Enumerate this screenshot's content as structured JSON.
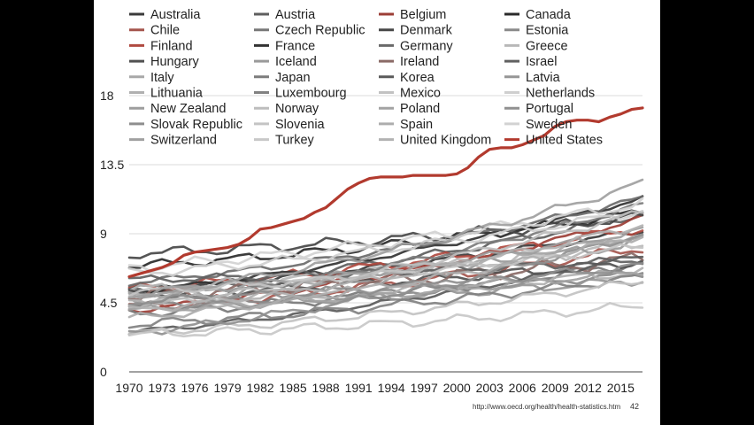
{
  "slide": {
    "source_text": "http://www.oecd.org/health/health-statistics.htm",
    "page_number": "42"
  },
  "chart_data": {
    "type": "line",
    "title": "",
    "xlabel": "",
    "ylabel": "",
    "x": [
      1970,
      1971,
      1972,
      1973,
      1974,
      1975,
      1976,
      1977,
      1978,
      1979,
      1980,
      1981,
      1982,
      1983,
      1984,
      1985,
      1986,
      1987,
      1988,
      1989,
      1990,
      1991,
      1992,
      1993,
      1994,
      1995,
      1996,
      1997,
      1998,
      1999,
      2000,
      2001,
      2002,
      2003,
      2004,
      2005,
      2006,
      2007,
      2008,
      2009,
      2010,
      2011,
      2012,
      2013,
      2014,
      2015,
      2016,
      2017
    ],
    "xticks": [
      "1970",
      "1973",
      "1976",
      "1979",
      "1982",
      "1985",
      "1988",
      "1991",
      "1994",
      "1997",
      "2000",
      "2003",
      "2006",
      "2009",
      "2012",
      "2015"
    ],
    "yticks": [
      "0",
      "4.5",
      "9",
      "13.5",
      "18"
    ],
    "xlim": [
      1970,
      2017
    ],
    "ylim": [
      0,
      18
    ],
    "grid": "horizontal",
    "legend_position": "top",
    "series": [
      {
        "name": "Australia",
        "color": "#3a3a3a",
        "start": 5.4,
        "end": 9.2,
        "wobble": 0.25
      },
      {
        "name": "Austria",
        "color": "#5e5e5e",
        "start": 5.2,
        "end": 10.3,
        "wobble": 0.3
      },
      {
        "name": "Belgium",
        "color": "#9c3e36",
        "start": 4.0,
        "end": 10.0,
        "wobble": 0.25
      },
      {
        "name": "Canada",
        "color": "#2a2a2a",
        "start": 6.9,
        "end": 10.4,
        "wobble": 0.35
      },
      {
        "name": "Chile",
        "color": "#a5554d",
        "start": 4.2,
        "end": 8.1,
        "wobble": 0.4
      },
      {
        "name": "Czech Republic",
        "color": "#787878",
        "start": 3.8,
        "end": 7.1,
        "wobble": 0.35
      },
      {
        "name": "Denmark",
        "color": "#474747",
        "start": 7.7,
        "end": 10.1,
        "wobble": 0.4
      },
      {
        "name": "Estonia",
        "color": "#8a8a8a",
        "start": 4.3,
        "end": 6.4,
        "wobble": 0.3
      },
      {
        "name": "Finland",
        "color": "#b04a40",
        "start": 5.4,
        "end": 9.4,
        "wobble": 0.4
      },
      {
        "name": "France",
        "color": "#333333",
        "start": 5.2,
        "end": 11.3,
        "wobble": 0.2
      },
      {
        "name": "Germany",
        "color": "#6a6a6a",
        "start": 5.8,
        "end": 11.3,
        "wobble": 0.25
      },
      {
        "name": "Greece",
        "color": "#b8b8b8",
        "start": 5.3,
        "end": 8.4,
        "wobble": 0.5
      },
      {
        "name": "Hungary",
        "color": "#505050",
        "start": 5.0,
        "end": 7.2,
        "wobble": 0.35
      },
      {
        "name": "Iceland",
        "color": "#9a9a9a",
        "start": 4.7,
        "end": 8.5,
        "wobble": 0.45
      },
      {
        "name": "Ireland",
        "color": "#8a6a66",
        "start": 5.0,
        "end": 7.4,
        "wobble": 0.55
      },
      {
        "name": "Israel",
        "color": "#606060",
        "start": 6.0,
        "end": 7.3,
        "wobble": 0.3
      },
      {
        "name": "Italy",
        "color": "#a8a8a8",
        "start": 5.0,
        "end": 8.9,
        "wobble": 0.3
      },
      {
        "name": "Japan",
        "color": "#7c7c7c",
        "start": 4.4,
        "end": 10.9,
        "wobble": 0.25
      },
      {
        "name": "Korea",
        "color": "#5a5a5a",
        "start": 2.6,
        "end": 7.6,
        "wobble": 0.2
      },
      {
        "name": "Latvia",
        "color": "#969696",
        "start": 4.2,
        "end": 6.0,
        "wobble": 0.35
      },
      {
        "name": "Lithuania",
        "color": "#b0b0b0",
        "start": 4.6,
        "end": 6.5,
        "wobble": 0.35
      },
      {
        "name": "Luxembourg",
        "color": "#818181",
        "start": 3.1,
        "end": 6.2,
        "wobble": 0.35
      },
      {
        "name": "Mexico",
        "color": "#c2c2c2",
        "start": 2.5,
        "end": 5.9,
        "wobble": 0.3
      },
      {
        "name": "Netherlands",
        "color": "#cfcfcf",
        "start": 6.4,
        "end": 10.5,
        "wobble": 0.35
      },
      {
        "name": "New Zealand",
        "color": "#9e9e9e",
        "start": 5.0,
        "end": 9.2,
        "wobble": 0.3
      },
      {
        "name": "Norway",
        "color": "#bdbdbd",
        "start": 4.3,
        "end": 10.4,
        "wobble": 0.3
      },
      {
        "name": "Poland",
        "color": "#a3a3a3",
        "start": 4.0,
        "end": 6.6,
        "wobble": 0.3
      },
      {
        "name": "Portugal",
        "color": "#909090",
        "start": 2.5,
        "end": 9.0,
        "wobble": 0.3
      },
      {
        "name": "Slovak Republic",
        "color": "#8e8e8e",
        "start": 4.6,
        "end": 6.9,
        "wobble": 0.35
      },
      {
        "name": "Slovenia",
        "color": "#c4c4c4",
        "start": 5.2,
        "end": 8.2,
        "wobble": 0.3
      },
      {
        "name": "Spain",
        "color": "#adadad",
        "start": 3.5,
        "end": 8.9,
        "wobble": 0.3
      },
      {
        "name": "Sweden",
        "color": "#d2d2d2",
        "start": 6.8,
        "end": 11.0,
        "wobble": 0.4
      },
      {
        "name": "Switzerland",
        "color": "#a0a0a0",
        "start": 5.0,
        "end": 12.3,
        "wobble": 0.3
      },
      {
        "name": "Turkey",
        "color": "#c8c8c8",
        "start": 2.4,
        "end": 4.3,
        "wobble": 0.35
      },
      {
        "name": "United Kingdom",
        "color": "#b2b2b2",
        "start": 4.0,
        "end": 9.6,
        "wobble": 0.3
      },
      {
        "name": "United States",
        "color": "#b23a2e",
        "values": [
          6.2,
          6.4,
          6.6,
          6.8,
          7.1,
          7.6,
          7.8,
          7.9,
          8.0,
          8.1,
          8.3,
          8.7,
          9.3,
          9.4,
          9.6,
          9.8,
          10.0,
          10.4,
          10.7,
          11.3,
          11.9,
          12.3,
          12.6,
          12.7,
          12.7,
          12.7,
          12.8,
          12.8,
          12.8,
          12.8,
          12.9,
          13.3,
          14.0,
          14.5,
          14.6,
          14.6,
          14.8,
          15.1,
          15.4,
          16.0,
          16.3,
          16.4,
          16.4,
          16.3,
          16.6,
          16.8,
          17.1,
          17.2
        ]
      }
    ]
  }
}
